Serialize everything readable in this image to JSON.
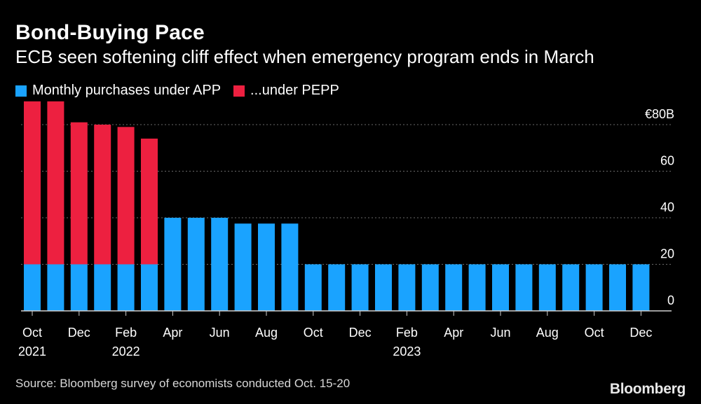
{
  "title": "Bond-Buying Pace",
  "subtitle": "ECB seen softening cliff effect when emergency program ends in March",
  "source": "Source: Bloomberg survey of economists conducted Oct. 15-20",
  "brand": "Bloomberg",
  "colors": {
    "app": "#1aa3ff",
    "pepp": "#ed2040",
    "background": "#000000",
    "grid": "#6a6a6a"
  },
  "chart_data": {
    "type": "bar",
    "stacked": true,
    "title": "Bond-Buying Pace",
    "ylim": [
      0,
      80
    ],
    "y_ticks": [
      {
        "value": 0,
        "label": "0"
      },
      {
        "value": 20,
        "label": "20"
      },
      {
        "value": 40,
        "label": "40"
      },
      {
        "value": 60,
        "label": "60"
      },
      {
        "value": 80,
        "label": "€80B"
      }
    ],
    "grid": true,
    "legend_position": "top-left",
    "categories": [
      "Oct 2021",
      "Nov 2021",
      "Dec 2021",
      "Jan 2022",
      "Feb 2022",
      "Mar 2022",
      "Apr 2022",
      "May 2022",
      "Jun 2022",
      "Jul 2022",
      "Aug 2022",
      "Sep 2022",
      "Oct 2022",
      "Nov 2022",
      "Dec 2022",
      "Jan 2023",
      "Feb 2023",
      "Mar 2023",
      "Apr 2023",
      "May 2023",
      "Jun 2023",
      "Jul 2023",
      "Aug 2023",
      "Sep 2023",
      "Oct 2023",
      "Nov 2023",
      "Dec 2023"
    ],
    "x_tick_labels": [
      {
        "index": 0,
        "line1": "Oct",
        "line2": "2021"
      },
      {
        "index": 2,
        "line1": "Dec",
        "line2": ""
      },
      {
        "index": 4,
        "line1": "Feb",
        "line2": "2022"
      },
      {
        "index": 6,
        "line1": "Apr",
        "line2": ""
      },
      {
        "index": 8,
        "line1": "Jun",
        "line2": ""
      },
      {
        "index": 10,
        "line1": "Aug",
        "line2": ""
      },
      {
        "index": 12,
        "line1": "Oct",
        "line2": ""
      },
      {
        "index": 14,
        "line1": "Dec",
        "line2": ""
      },
      {
        "index": 16,
        "line1": "Feb",
        "line2": "2023"
      },
      {
        "index": 18,
        "line1": "Apr",
        "line2": ""
      },
      {
        "index": 20,
        "line1": "Jun",
        "line2": ""
      },
      {
        "index": 22,
        "line1": "Aug",
        "line2": ""
      },
      {
        "index": 24,
        "line1": "Oct",
        "line2": ""
      },
      {
        "index": 26,
        "line1": "Dec",
        "line2": ""
      }
    ],
    "series": [
      {
        "name": "Monthly purchases under APP",
        "color": "#1aa3ff",
        "values": [
          20,
          20,
          20,
          20,
          20,
          20,
          40,
          40,
          40,
          37.5,
          37.5,
          37.5,
          20,
          20,
          20,
          20,
          20,
          20,
          20,
          20,
          20,
          20,
          20,
          20,
          20,
          20,
          20
        ]
      },
      {
        "name": "...under PEPP",
        "color": "#ed2040",
        "values": [
          70,
          70,
          61,
          60,
          59,
          54,
          0,
          0,
          0,
          0,
          0,
          0,
          0,
          0,
          0,
          0,
          0,
          0,
          0,
          0,
          0,
          0,
          0,
          0,
          0,
          0,
          0
        ]
      }
    ]
  }
}
